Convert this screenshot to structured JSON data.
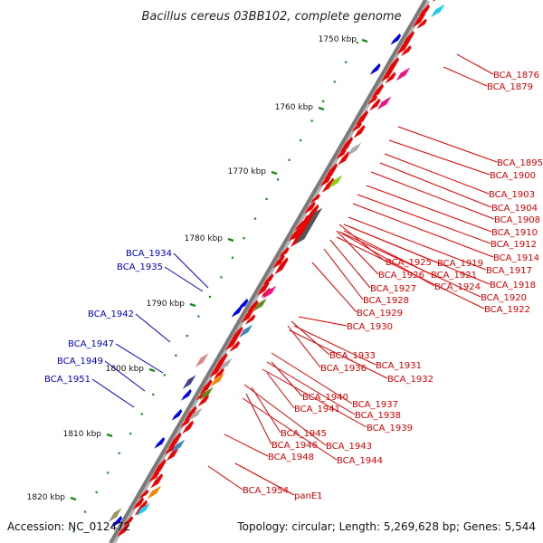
{
  "title": "Bacillus cereus 03BB102, complete genome",
  "footer": {
    "accession": "Accession: NC_012472",
    "summary": "Topology: circular; Length: 5,269,628 bp; Genes: 5,544"
  },
  "colors": {
    "backbone": "#7a7a7a",
    "forward_label": "#0000cc",
    "reverse_label": "#dd0000",
    "gene_red": "#ee0000",
    "gene_blue": "#0000ee",
    "tick_green": "#1a8a1a"
  },
  "kbp_ticks": [
    {
      "label": "1750 kbp"
    },
    {
      "label": "1760 kbp"
    },
    {
      "label": "1770 kbp"
    },
    {
      "label": "1780 kbp"
    },
    {
      "label": "1790 kbp"
    },
    {
      "label": "1800 kbp"
    },
    {
      "label": "1810 kbp"
    },
    {
      "label": "1820 kbp"
    }
  ],
  "forward_labels": [
    "BCA_1934",
    "BCA_1935",
    "BCA_1942",
    "BCA_1947",
    "BCA_1949",
    "BCA_1951"
  ],
  "reverse_labels": [
    "BCA_1876",
    "BCA_1879",
    "BCA_1895",
    "BCA_1900",
    "BCA_1903",
    "BCA_1904",
    "BCA_1908",
    "BCA_1910",
    "BCA_1912",
    "BCA_1914",
    "BCA_1917",
    "BCA_1918",
    "BCA_1920",
    "BCA_1922",
    "BCA_1919",
    "BCA_1921",
    "BCA_1924",
    "BCA_1925",
    "BCA_1926",
    "BCA_1927",
    "BCA_1928",
    "BCA_1929",
    "BCA_1930",
    "BCA_1933",
    "BCA_1936",
    "BCA_1931",
    "BCA_1932",
    "BCA_1937",
    "BCA_1938",
    "BCA_1939",
    "BCA_1940",
    "BCA_1941",
    "BCA_1945",
    "BCA_1946",
    "BCA_1943",
    "BCA_1944",
    "BCA_1948",
    "BCA_1954",
    "panE1"
  ]
}
